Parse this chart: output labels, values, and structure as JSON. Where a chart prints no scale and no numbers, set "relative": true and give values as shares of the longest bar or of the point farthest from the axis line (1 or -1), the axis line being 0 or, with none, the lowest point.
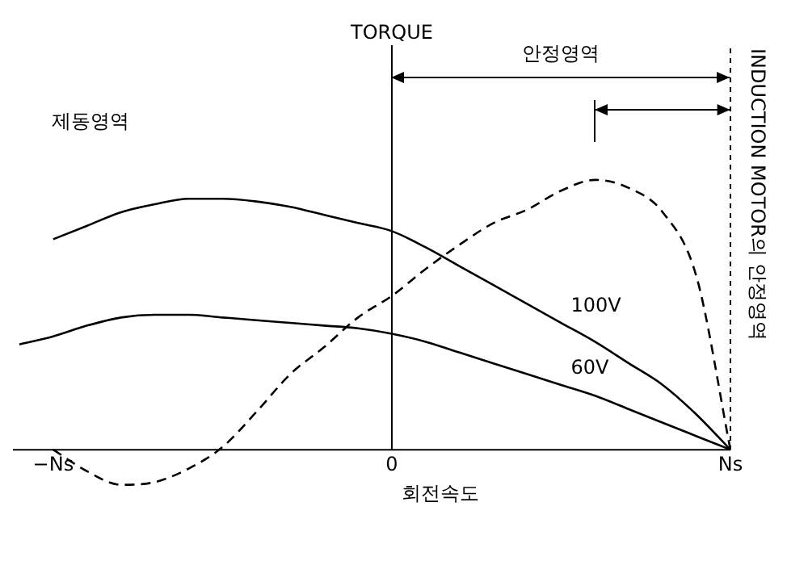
{
  "chart_data": {
    "type": "line",
    "relative": true,
    "xlabel": "회전속도",
    "categories": [
      null,
      "−Ns",
      null,
      null,
      null,
      null,
      null,
      null,
      null,
      null,
      null,
      "0",
      null,
      null,
      null,
      null,
      null,
      null,
      null,
      null,
      null,
      "Ns"
    ],
    "legend": false,
    "marker": "none",
    "annotations": [
      "제동영역",
      "안정영역",
      "INDUCTION MOTOR의 안정영역",
      "TORQUE"
    ],
    "series": [
      {
        "name": "100V",
        "color": "#000000",
        "line_style": "solid",
        "values": [
          null,
          0.78,
          0.83,
          0.88,
          0.91,
          0.93,
          0.93,
          0.92,
          0.9,
          0.87,
          0.84,
          0.81,
          0.75,
          0.68,
          0.61,
          0.54,
          0.47,
          0.4,
          0.32,
          0.24,
          0.13,
          0
        ]
      },
      {
        "name": "60V",
        "color": "#000000",
        "line_style": "solid",
        "values": [
          0.39,
          0.42,
          0.46,
          0.49,
          0.5,
          0.5,
          0.49,
          0.48,
          0.47,
          0.46,
          0.45,
          0.43,
          0.4,
          0.36,
          0.32,
          0.28,
          0.24,
          0.2,
          0.15,
          0.1,
          0.05,
          0
        ]
      },
      {
        "color": "#000000",
        "line_style": "dashed",
        "values": [
          null,
          0,
          -0.08,
          -0.13,
          -0.12,
          -0.07,
          0.01,
          0.14,
          0.28,
          0.38,
          0.49,
          0.57,
          0.67,
          0.76,
          0.84,
          0.89,
          0.96,
          1,
          0.97,
          0.88,
          0.64,
          0
        ]
      }
    ]
  }
}
